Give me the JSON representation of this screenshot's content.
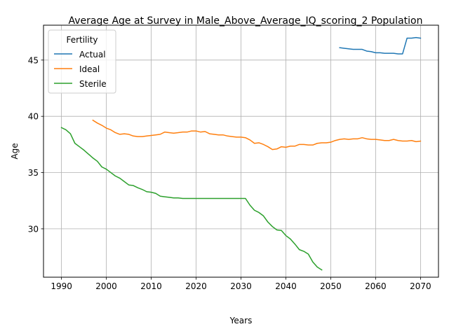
{
  "chart_data": {
    "type": "line",
    "title": "Average Age at Survey in Male_Above_Average_IQ_scoring_2 Population",
    "xlabel": "Years",
    "ylabel": "Age",
    "xlim": [
      1986.0,
      2074.0
    ],
    "ylim": [
      25.7,
      48.1
    ],
    "xticks": [
      1990,
      2000,
      2010,
      2020,
      2030,
      2040,
      2050,
      2060,
      2070
    ],
    "yticks": [
      30,
      35,
      40,
      45
    ],
    "grid": true,
    "legend": {
      "title": "Fertility",
      "position": "upper-left"
    },
    "series": [
      {
        "name": "Actual",
        "color": "#1f77b4",
        "x": [
          2052,
          2053,
          2054,
          2055,
          2056,
          2057,
          2058,
          2059,
          2060,
          2061,
          2062,
          2063,
          2064,
          2065,
          2066,
          2067,
          2068,
          2069,
          2070
        ],
        "y": [
          46.1,
          46.05,
          46.0,
          45.95,
          45.95,
          45.95,
          45.8,
          45.75,
          45.65,
          45.65,
          45.6,
          45.6,
          45.6,
          45.55,
          45.55,
          46.95,
          46.95,
          47.0,
          46.95
        ]
      },
      {
        "name": "Ideal",
        "color": "#ff7f0e",
        "x": [
          1997,
          1998,
          1999,
          2000,
          2001,
          2002,
          2003,
          2004,
          2005,
          2006,
          2007,
          2008,
          2009,
          2010,
          2011,
          2012,
          2013,
          2014,
          2015,
          2016,
          2017,
          2018,
          2019,
          2020,
          2021,
          2022,
          2023,
          2024,
          2025,
          2026,
          2027,
          2028,
          2029,
          2030,
          2031,
          2032,
          2033,
          2034,
          2035,
          2036,
          2037,
          2038,
          2039,
          2040,
          2041,
          2042,
          2043,
          2044,
          2045,
          2046,
          2047,
          2048,
          2049,
          2050,
          2051,
          2052,
          2053,
          2054,
          2055,
          2056,
          2057,
          2058,
          2059,
          2060,
          2061,
          2062,
          2063,
          2064,
          2065,
          2066,
          2067,
          2068,
          2069,
          2070
        ],
        "y": [
          39.65,
          39.4,
          39.2,
          38.95,
          38.8,
          38.55,
          38.4,
          38.45,
          38.4,
          38.25,
          38.2,
          38.2,
          38.25,
          38.3,
          38.35,
          38.4,
          38.6,
          38.55,
          38.5,
          38.55,
          38.6,
          38.6,
          38.7,
          38.7,
          38.6,
          38.65,
          38.45,
          38.4,
          38.35,
          38.35,
          38.25,
          38.2,
          38.15,
          38.15,
          38.1,
          37.9,
          37.6,
          37.65,
          37.5,
          37.3,
          37.05,
          37.1,
          37.3,
          37.25,
          37.35,
          37.35,
          37.5,
          37.5,
          37.45,
          37.45,
          37.6,
          37.65,
          37.65,
          37.7,
          37.85,
          37.95,
          38.0,
          37.95,
          38.0,
          38.0,
          38.1,
          38.0,
          37.95,
          37.95,
          37.9,
          37.85,
          37.85,
          37.95,
          37.85,
          37.8,
          37.8,
          37.85,
          37.75,
          37.8
        ]
      },
      {
        "name": "Sterile",
        "color": "#2ca02c",
        "x": [
          1990,
          1991,
          1992,
          1993,
          1994,
          1995,
          1996,
          1997,
          1998,
          1999,
          2000,
          2001,
          2002,
          2003,
          2004,
          2005,
          2006,
          2007,
          2008,
          2009,
          2010,
          2011,
          2012,
          2013,
          2014,
          2015,
          2016,
          2017,
          2018,
          2019,
          2020,
          2021,
          2022,
          2023,
          2024,
          2025,
          2026,
          2027,
          2028,
          2029,
          2030,
          2031,
          2032,
          2033,
          2034,
          2035,
          2036,
          2037,
          2038,
          2039,
          2040,
          2041,
          2042,
          2043,
          2044,
          2045,
          2046,
          2047,
          2048
        ],
        "y": [
          39.0,
          38.8,
          38.45,
          37.6,
          37.3,
          37.0,
          36.65,
          36.3,
          36.0,
          35.5,
          35.3,
          35.0,
          34.7,
          34.5,
          34.2,
          33.9,
          33.85,
          33.65,
          33.5,
          33.3,
          33.25,
          33.15,
          32.9,
          32.85,
          32.8,
          32.75,
          32.75,
          32.7,
          32.7,
          32.7,
          32.7,
          32.7,
          32.7,
          32.7,
          32.7,
          32.7,
          32.7,
          32.7,
          32.7,
          32.7,
          32.7,
          32.7,
          32.1,
          31.65,
          31.45,
          31.15,
          30.6,
          30.2,
          29.9,
          29.85,
          29.4,
          29.1,
          28.65,
          28.15,
          28.0,
          27.75,
          27.05,
          26.6,
          26.35
        ]
      }
    ]
  }
}
